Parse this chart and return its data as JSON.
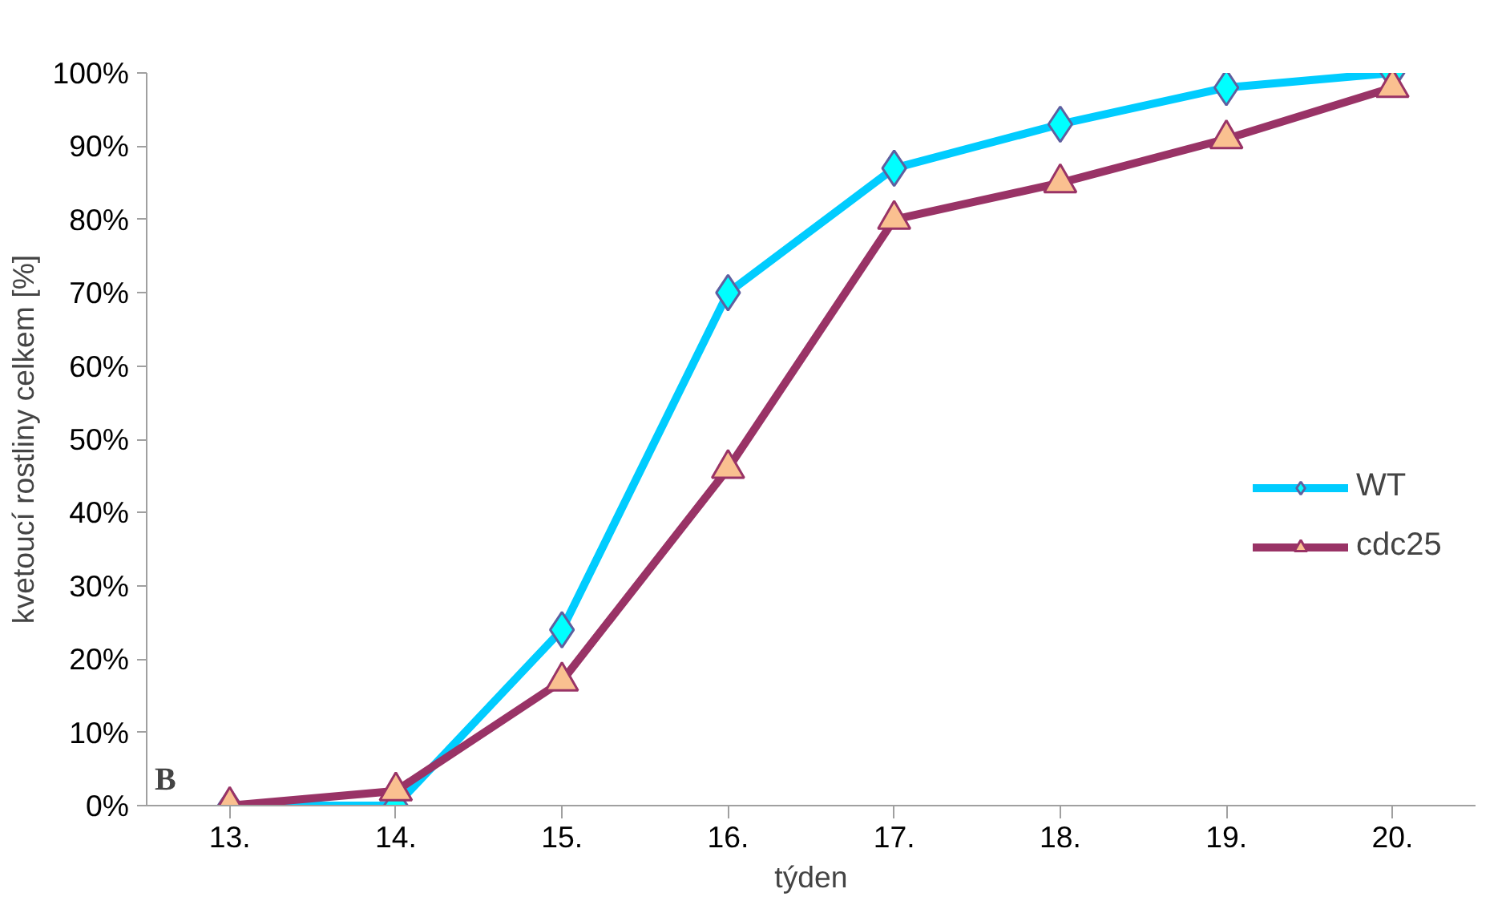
{
  "chart_data": {
    "type": "line",
    "xlabel": "týden",
    "ylabel": "kvetoucí rostliny celkem [%]",
    "categories": [
      "13.",
      "14.",
      "15.",
      "16.",
      "17.",
      "18.",
      "19.",
      "20."
    ],
    "series": [
      {
        "name": "WT",
        "color": "#00ccff",
        "marker": "diamond",
        "values": [
          0,
          0,
          24,
          70,
          87,
          93,
          98,
          100
        ]
      },
      {
        "name": "cdc25",
        "color": "#993366",
        "marker": "triangle",
        "values": [
          0,
          2,
          17,
          46,
          80,
          85,
          91,
          98
        ]
      }
    ],
    "ylim": [
      0,
      100
    ],
    "yticks": [
      {
        "value": 0,
        "label": "0%"
      },
      {
        "value": 10,
        "label": "10%"
      },
      {
        "value": 20,
        "label": "20%"
      },
      {
        "value": 30,
        "label": "30%"
      },
      {
        "value": 40,
        "label": "40%"
      },
      {
        "value": 50,
        "label": "50%"
      },
      {
        "value": 60,
        "label": "60%"
      },
      {
        "value": 70,
        "label": "70%"
      },
      {
        "value": 80,
        "label": "80%"
      },
      {
        "value": 90,
        "label": "90%"
      },
      {
        "value": 100,
        "label": "100%"
      }
    ],
    "annotations": [
      "B"
    ],
    "grid": false,
    "legend": "right",
    "line_style": "solid"
  }
}
